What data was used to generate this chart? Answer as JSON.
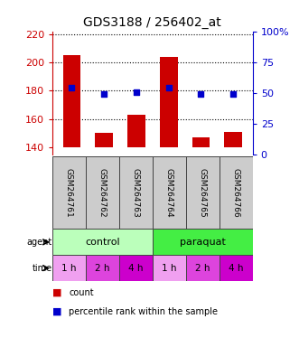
{
  "title": "GDS3188 / 256402_at",
  "categories": [
    "GSM264761",
    "GSM264762",
    "GSM264763",
    "GSM264764",
    "GSM264765",
    "GSM264766"
  ],
  "bar_values": [
    205,
    150,
    163,
    204,
    147,
    151
  ],
  "bar_bottom": 140,
  "dot_values": [
    182,
    178,
    179,
    182,
    178,
    178
  ],
  "bar_color": "#cc0000",
  "dot_color": "#0000cc",
  "ylim_left": [
    135,
    222
  ],
  "yticks_left": [
    140,
    160,
    180,
    200,
    220
  ],
  "ylim_right": [
    0,
    100
  ],
  "yticks_right": [
    0,
    25,
    50,
    75,
    100
  ],
  "ytick_labels_right": [
    "0",
    "25",
    "50",
    "75",
    "100%"
  ],
  "agent_labels": [
    "control",
    "paraquat"
  ],
  "agent_colors": [
    "#bbffbb",
    "#44ee44"
  ],
  "time_labels": [
    "1 h",
    "2 h",
    "4 h",
    "1 h",
    "2 h",
    "4 h"
  ],
  "time_colors": [
    "#f0a0f0",
    "#dd44dd",
    "#cc00cc",
    "#f0a0f0",
    "#dd44dd",
    "#cc00cc"
  ],
  "left_label_color": "#cc0000",
  "right_label_color": "#0000cc",
  "legend_count_color": "#cc0000",
  "legend_dot_color": "#0000cc",
  "bg_color": "#ffffff",
  "gsm_bg_color": "#cccccc",
  "grid_color": "#000000"
}
